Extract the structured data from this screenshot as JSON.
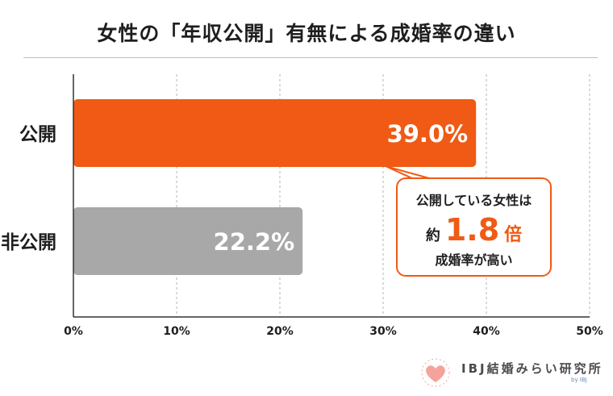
{
  "chart_data": {
    "type": "bar",
    "orientation": "horizontal",
    "title": "女性の「年収公開」有無による成婚率の違い",
    "categories": [
      "公開",
      "非公開"
    ],
    "values": [
      39.0,
      22.2
    ],
    "data_labels": [
      "39.0%",
      "22.2%"
    ],
    "colors": [
      "#f05a14",
      "#a8a8a8"
    ],
    "xlim": [
      0,
      50
    ],
    "xticks": [
      0,
      10,
      20,
      30,
      40,
      50
    ],
    "xtick_labels": [
      "0%",
      "10%",
      "20%",
      "30%",
      "40%",
      "50%"
    ],
    "grid": true,
    "annotation": {
      "line1": "公開している女性は",
      "prefix": "約",
      "value": "1.8",
      "unit": "倍",
      "line3": "成婚率が高い"
    }
  },
  "logo": {
    "name": "IBJ結婚みらい研究所",
    "sub": "by IBJ"
  }
}
